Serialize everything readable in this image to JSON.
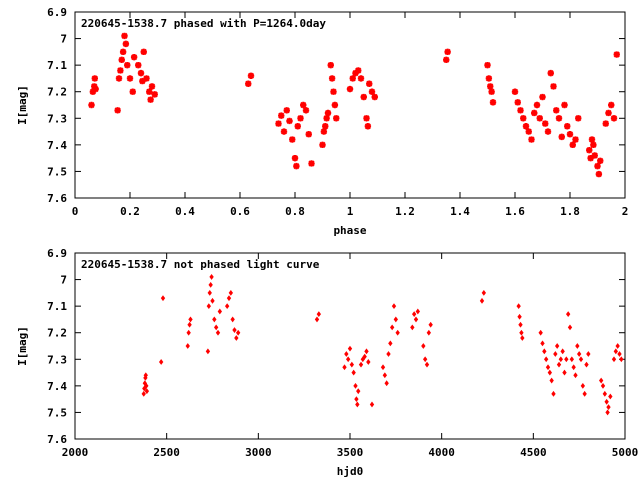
{
  "chart_data": [
    {
      "type": "scatter",
      "title": "220645-1538.7 phased with P=1264.0day",
      "xlabel": "phase",
      "ylabel": "I[mag]",
      "xlim": [
        0,
        2
      ],
      "ylim": [
        7.6,
        6.9
      ],
      "y_inverted": true,
      "xticks": [
        0,
        0.2,
        0.4,
        0.6,
        0.8,
        1,
        1.2,
        1.4,
        1.6,
        1.8,
        2
      ],
      "xtick_labels": [
        "0",
        "0.2",
        "0.4",
        "0.6",
        "0.8",
        "1",
        "1.2",
        "1.4",
        "1.6",
        "1.8",
        "2"
      ],
      "yticks": [
        6.9,
        7,
        7.1,
        7.2,
        7.3,
        7.4,
        7.5,
        7.6
      ],
      "ytick_labels": [
        "6.9",
        "7",
        "7.1",
        "7.2",
        "7.3",
        "7.4",
        "7.5",
        "7.6"
      ],
      "grid": false,
      "marker": "star",
      "color": "#ff0000",
      "series": [
        {
          "points": [
            [
              0.06,
              7.25
            ],
            [
              0.065,
              7.2
            ],
            [
              0.07,
              7.18
            ],
            [
              0.072,
              7.15
            ],
            [
              0.075,
              7.19
            ],
            [
              0.155,
              7.27
            ],
            [
              0.16,
              7.15
            ],
            [
              0.165,
              7.12
            ],
            [
              0.17,
              7.08
            ],
            [
              0.175,
              7.05
            ],
            [
              0.18,
              6.99
            ],
            [
              0.185,
              7.02
            ],
            [
              0.19,
              7.1
            ],
            [
              0.2,
              7.15
            ],
            [
              0.21,
              7.2
            ],
            [
              0.215,
              7.07
            ],
            [
              0.23,
              7.1
            ],
            [
              0.24,
              7.13
            ],
            [
              0.245,
              7.16
            ],
            [
              0.25,
              7.05
            ],
            [
              0.26,
              7.15
            ],
            [
              0.27,
              7.2
            ],
            [
              0.275,
              7.23
            ],
            [
              0.28,
              7.18
            ],
            [
              0.29,
              7.21
            ],
            [
              0.63,
              7.17
            ],
            [
              0.64,
              7.14
            ],
            [
              0.74,
              7.32
            ],
            [
              0.75,
              7.29
            ],
            [
              0.76,
              7.35
            ],
            [
              0.77,
              7.27
            ],
            [
              0.78,
              7.31
            ],
            [
              0.79,
              7.38
            ],
            [
              0.8,
              7.45
            ],
            [
              0.805,
              7.48
            ],
            [
              0.81,
              7.33
            ],
            [
              0.82,
              7.3
            ],
            [
              0.83,
              7.25
            ],
            [
              0.84,
              7.27
            ],
            [
              0.85,
              7.36
            ],
            [
              0.86,
              7.47
            ],
            [
              0.9,
              7.4
            ],
            [
              0.905,
              7.35
            ],
            [
              0.91,
              7.33
            ],
            [
              0.915,
              7.3
            ],
            [
              0.92,
              7.28
            ],
            [
              0.93,
              7.1
            ],
            [
              0.935,
              7.15
            ],
            [
              0.94,
              7.2
            ],
            [
              0.945,
              7.25
            ],
            [
              0.95,
              7.3
            ],
            [
              1.0,
              7.19
            ],
            [
              1.01,
              7.15
            ],
            [
              1.02,
              7.13
            ],
            [
              1.03,
              7.12
            ],
            [
              1.04,
              7.15
            ],
            [
              1.05,
              7.22
            ],
            [
              1.06,
              7.3
            ],
            [
              1.065,
              7.33
            ],
            [
              1.07,
              7.17
            ],
            [
              1.08,
              7.2
            ],
            [
              1.09,
              7.22
            ],
            [
              1.35,
              7.08
            ],
            [
              1.355,
              7.05
            ],
            [
              1.5,
              7.1
            ],
            [
              1.505,
              7.15
            ],
            [
              1.51,
              7.18
            ],
            [
              1.515,
              7.2
            ],
            [
              1.52,
              7.24
            ],
            [
              1.6,
              7.2
            ],
            [
              1.61,
              7.24
            ],
            [
              1.62,
              7.27
            ],
            [
              1.63,
              7.3
            ],
            [
              1.64,
              7.33
            ],
            [
              1.65,
              7.35
            ],
            [
              1.66,
              7.38
            ],
            [
              1.67,
              7.28
            ],
            [
              1.68,
              7.25
            ],
            [
              1.69,
              7.3
            ],
            [
              1.7,
              7.22
            ],
            [
              1.71,
              7.32
            ],
            [
              1.72,
              7.35
            ],
            [
              1.73,
              7.13
            ],
            [
              1.74,
              7.18
            ],
            [
              1.75,
              7.27
            ],
            [
              1.76,
              7.3
            ],
            [
              1.77,
              7.37
            ],
            [
              1.78,
              7.25
            ],
            [
              1.79,
              7.33
            ],
            [
              1.8,
              7.36
            ],
            [
              1.81,
              7.4
            ],
            [
              1.82,
              7.38
            ],
            [
              1.83,
              7.3
            ],
            [
              1.87,
              7.42
            ],
            [
              1.875,
              7.45
            ],
            [
              1.88,
              7.38
            ],
            [
              1.885,
              7.4
            ],
            [
              1.89,
              7.44
            ],
            [
              1.9,
              7.48
            ],
            [
              1.905,
              7.51
            ],
            [
              1.91,
              7.46
            ],
            [
              1.93,
              7.32
            ],
            [
              1.94,
              7.28
            ],
            [
              1.95,
              7.25
            ],
            [
              1.96,
              7.3
            ],
            [
              1.97,
              7.06
            ]
          ]
        }
      ]
    },
    {
      "type": "scatter",
      "title": "220645-1538.7 not phased light curve",
      "xlabel": "hjd0",
      "ylabel": "I[mag]",
      "xlim": [
        2000,
        5000
      ],
      "ylim": [
        7.6,
        6.9
      ],
      "y_inverted": true,
      "xticks": [
        2000,
        2500,
        3000,
        3500,
        4000,
        4500,
        5000
      ],
      "xtick_labels": [
        "2000",
        "2500",
        "3000",
        "3500",
        "4000",
        "4500",
        "5000"
      ],
      "yticks": [
        6.9,
        7,
        7.1,
        7.2,
        7.3,
        7.4,
        7.5,
        7.6
      ],
      "ytick_labels": [
        "6.9",
        "7",
        "7.1",
        "7.2",
        "7.3",
        "7.4",
        "7.5",
        "7.6"
      ],
      "grid": false,
      "marker": "diamond",
      "color": "#ff0000",
      "series": [
        {
          "points": [
            [
              2375,
              7.43
            ],
            [
              2378,
              7.41
            ],
            [
              2381,
              7.39
            ],
            [
              2384,
              7.37
            ],
            [
              2386,
              7.36
            ],
            [
              2389,
              7.4
            ],
            [
              2392,
              7.42
            ],
            [
              2470,
              7.31
            ],
            [
              2480,
              7.07
            ],
            [
              2615,
              7.25
            ],
            [
              2620,
              7.2
            ],
            [
              2625,
              7.17
            ],
            [
              2630,
              7.15
            ],
            [
              2725,
              7.27
            ],
            [
              2730,
              7.1
            ],
            [
              2735,
              7.05
            ],
            [
              2740,
              7.02
            ],
            [
              2745,
              6.99
            ],
            [
              2750,
              7.08
            ],
            [
              2760,
              7.15
            ],
            [
              2770,
              7.18
            ],
            [
              2780,
              7.2
            ],
            [
              2790,
              7.12
            ],
            [
              2830,
              7.1
            ],
            [
              2840,
              7.07
            ],
            [
              2850,
              7.05
            ],
            [
              2860,
              7.15
            ],
            [
              2870,
              7.19
            ],
            [
              2880,
              7.22
            ],
            [
              2890,
              7.2
            ],
            [
              3320,
              7.15
            ],
            [
              3330,
              7.13
            ],
            [
              3470,
              7.33
            ],
            [
              3480,
              7.28
            ],
            [
              3490,
              7.3
            ],
            [
              3500,
              7.26
            ],
            [
              3510,
              7.32
            ],
            [
              3520,
              7.35
            ],
            [
              3530,
              7.4
            ],
            [
              3535,
              7.45
            ],
            [
              3540,
              7.47
            ],
            [
              3545,
              7.42
            ],
            [
              3560,
              7.32
            ],
            [
              3570,
              7.3
            ],
            [
              3580,
              7.29
            ],
            [
              3590,
              7.27
            ],
            [
              3600,
              7.31
            ],
            [
              3620,
              7.47
            ],
            [
              3680,
              7.33
            ],
            [
              3690,
              7.36
            ],
            [
              3700,
              7.39
            ],
            [
              3710,
              7.28
            ],
            [
              3720,
              7.24
            ],
            [
              3730,
              7.18
            ],
            [
              3740,
              7.1
            ],
            [
              3750,
              7.15
            ],
            [
              3760,
              7.2
            ],
            [
              3840,
              7.18
            ],
            [
              3850,
              7.13
            ],
            [
              3860,
              7.15
            ],
            [
              3870,
              7.12
            ],
            [
              3900,
              7.25
            ],
            [
              3910,
              7.3
            ],
            [
              3920,
              7.32
            ],
            [
              3930,
              7.2
            ],
            [
              3940,
              7.17
            ],
            [
              4220,
              7.08
            ],
            [
              4230,
              7.05
            ],
            [
              4420,
              7.1
            ],
            [
              4425,
              7.14
            ],
            [
              4430,
              7.17
            ],
            [
              4435,
              7.2
            ],
            [
              4440,
              7.22
            ],
            [
              4540,
              7.2
            ],
            [
              4550,
              7.24
            ],
            [
              4560,
              7.27
            ],
            [
              4570,
              7.3
            ],
            [
              4580,
              7.33
            ],
            [
              4590,
              7.35
            ],
            [
              4600,
              7.38
            ],
            [
              4610,
              7.43
            ],
            [
              4620,
              7.28
            ],
            [
              4630,
              7.25
            ],
            [
              4640,
              7.32
            ],
            [
              4650,
              7.3
            ],
            [
              4660,
              7.27
            ],
            [
              4670,
              7.35
            ],
            [
              4680,
              7.3
            ],
            [
              4690,
              7.13
            ],
            [
              4700,
              7.18
            ],
            [
              4710,
              7.3
            ],
            [
              4720,
              7.33
            ],
            [
              4730,
              7.36
            ],
            [
              4740,
              7.25
            ],
            [
              4750,
              7.28
            ],
            [
              4760,
              7.3
            ],
            [
              4770,
              7.4
            ],
            [
              4780,
              7.43
            ],
            [
              4790,
              7.32
            ],
            [
              4800,
              7.28
            ],
            [
              4870,
              7.38
            ],
            [
              4880,
              7.4
            ],
            [
              4890,
              7.43
            ],
            [
              4900,
              7.46
            ],
            [
              4905,
              7.5
            ],
            [
              4910,
              7.48
            ],
            [
              4920,
              7.44
            ],
            [
              4940,
              7.3
            ],
            [
              4950,
              7.27
            ],
            [
              4960,
              7.25
            ],
            [
              4970,
              7.28
            ],
            [
              4980,
              7.3
            ]
          ]
        }
      ]
    }
  ]
}
